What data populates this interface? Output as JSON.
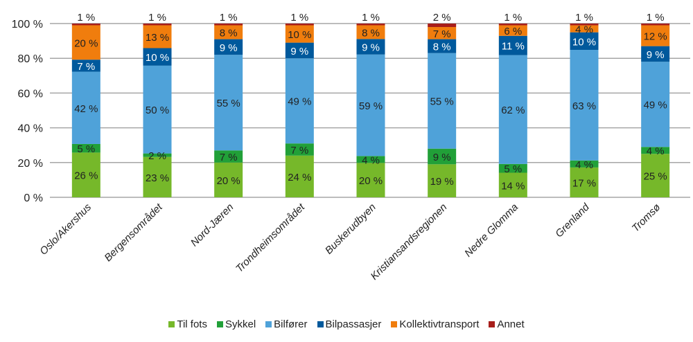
{
  "chart_data": {
    "type": "bar",
    "stacked": true,
    "title": "",
    "xlabel": "",
    "ylabel": "",
    "ylim": [
      0,
      100
    ],
    "yticks": [
      "0 %",
      "20 %",
      "40 %",
      "60 %",
      "80 %",
      "100 %"
    ],
    "ytick_values": [
      0,
      20,
      40,
      60,
      80,
      100
    ],
    "grid": true,
    "legend_position": "bottom",
    "categories": [
      "Oslo/Akershus",
      "Bergensområdet",
      "Nord-Jæren",
      "Trondheimsområdet",
      "Buskerudbyen",
      "Kristiansandsregionen",
      "Nedre Glomma",
      "Grenland",
      "Tromsø"
    ],
    "series": [
      {
        "name": "Til fots",
        "color": "#76b82a",
        "label_color": "#222222",
        "values": [
          26,
          23,
          20,
          24,
          20,
          19,
          14,
          17,
          25
        ]
      },
      {
        "name": "Sykkel",
        "color": "#21a038",
        "label_color": "#222222",
        "values": [
          5,
          2,
          7,
          7,
          4,
          9,
          5,
          4,
          4
        ]
      },
      {
        "name": "Bilfører",
        "color": "#4fa2d9",
        "label_color": "#222222",
        "values": [
          42,
          50,
          55,
          49,
          59,
          55,
          62,
          63,
          49
        ]
      },
      {
        "name": "Bilpassasjer",
        "color": "#00599c",
        "label_color": "#ffffff",
        "values": [
          7,
          10,
          9,
          9,
          9,
          8,
          11,
          10,
          9
        ]
      },
      {
        "name": "Kollektivtransport",
        "color": "#f07d0d",
        "label_color": "#222222",
        "values": [
          20,
          13,
          8,
          10,
          8,
          7,
          6,
          4,
          12
        ]
      },
      {
        "name": "Annet",
        "color": "#a71e1b",
        "label_color": "#222222",
        "values": [
          1,
          1,
          1,
          1,
          1,
          2,
          1,
          1,
          1
        ]
      }
    ],
    "value_suffix": " %"
  }
}
